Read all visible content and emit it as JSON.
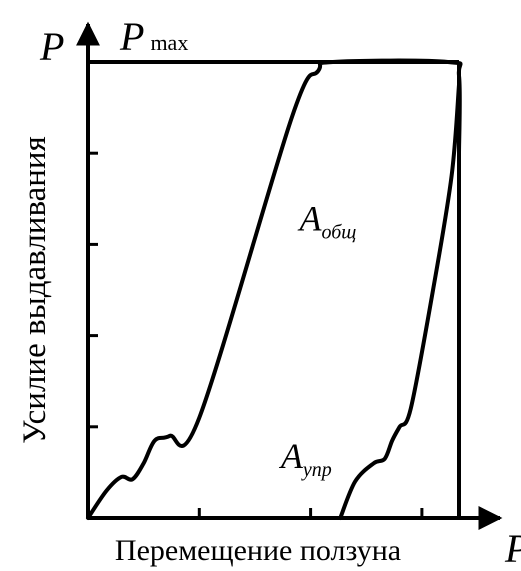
{
  "chart_data": {
    "type": "line",
    "title": "",
    "xlabel": "Перемещение ползуна",
    "ylabel": "Усилие выдавливания",
    "x_axis_symbol": "P",
    "y_axis_symbol": "P",
    "pmax_label": {
      "base": "P",
      "sub": "max"
    },
    "xlim": [
      0,
      1
    ],
    "ylim": [
      0,
      1
    ],
    "grid": false,
    "legend": "none",
    "x_ticks": [
      0.3,
      0.6,
      0.9
    ],
    "y_ticks": [
      0.2,
      0.4,
      0.6,
      0.8
    ],
    "series": [
      {
        "label": {
          "base": "A",
          "sub": "общ"
        },
        "label_at": [
          0.57,
          0.63
        ],
        "points": [
          [
            0.0,
            0.0
          ],
          [
            0.05,
            0.06
          ],
          [
            0.09,
            0.09
          ],
          [
            0.12,
            0.085
          ],
          [
            0.15,
            0.12
          ],
          [
            0.18,
            0.17
          ],
          [
            0.22,
            0.18
          ],
          [
            0.3,
            0.22
          ],
          [
            0.55,
            0.88
          ],
          [
            0.62,
            0.98
          ],
          [
            0.66,
            1.0
          ],
          [
            0.97,
            1.0
          ],
          [
            1.0,
            0.97
          ],
          [
            1.0,
            0.8
          ]
        ]
      },
      {
        "label": {
          "base": "A",
          "sub": "упр"
        },
        "label_at": [
          0.52,
          0.11
        ],
        "points": [
          [
            0.68,
            0.0
          ],
          [
            0.72,
            0.08
          ],
          [
            0.77,
            0.12
          ],
          [
            0.8,
            0.13
          ],
          [
            0.82,
            0.17
          ],
          [
            0.84,
            0.2
          ],
          [
            0.87,
            0.24
          ],
          [
            0.93,
            0.5
          ],
          [
            0.98,
            0.75
          ],
          [
            1.0,
            0.95
          ]
        ]
      }
    ]
  }
}
